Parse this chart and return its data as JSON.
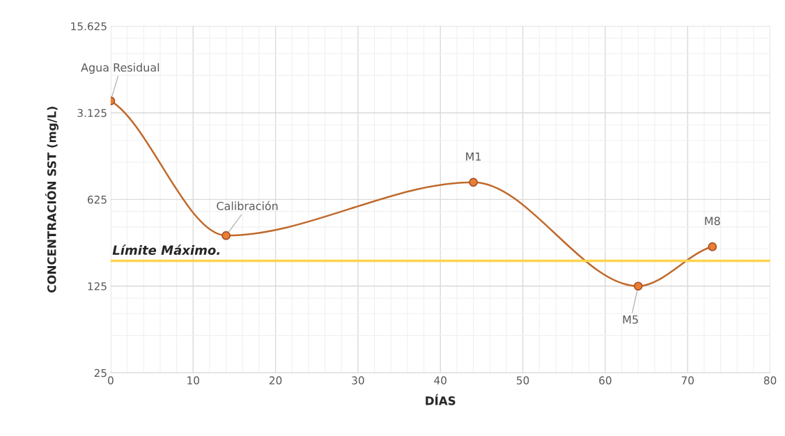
{
  "chart_data": {
    "type": "line",
    "xlabel": "DÍAS",
    "ylabel": "CONCENTRACIÓN SST (mg/L)",
    "series": [
      {
        "color": "#c0692b",
        "x": [
          0,
          14,
          44,
          64,
          73
        ],
        "values": [
          3900,
          320,
          860,
          125,
          260
        ]
      }
    ],
    "marker": "circle",
    "log": "y",
    "grid": true,
    "xlim": [
      0,
      80
    ],
    "xticks": [
      0,
      10,
      20,
      30,
      40,
      50,
      60,
      70,
      80
    ],
    "ylim": [
      25,
      15625
    ],
    "yticks": [
      25,
      125,
      625,
      {
        "value": 3125,
        "label": "3.125"
      },
      {
        "value": 15625,
        "label": "15.625"
      }
    ],
    "ref_lines": [
      {
        "axis": "y",
        "value": 200,
        "label": "Límite Máximo.",
        "color": "#ffd34d"
      }
    ],
    "annotations": [
      {
        "text": "Agua Residual",
        "x": 0,
        "y": 3900
      },
      {
        "text": "Calibración",
        "x": 14,
        "y": 320
      },
      {
        "text": "M1",
        "x": 44,
        "y": 860
      },
      {
        "text": "M5",
        "x": 64,
        "y": 125
      },
      {
        "text": "M8",
        "x": 73,
        "y": 260
      }
    ]
  }
}
